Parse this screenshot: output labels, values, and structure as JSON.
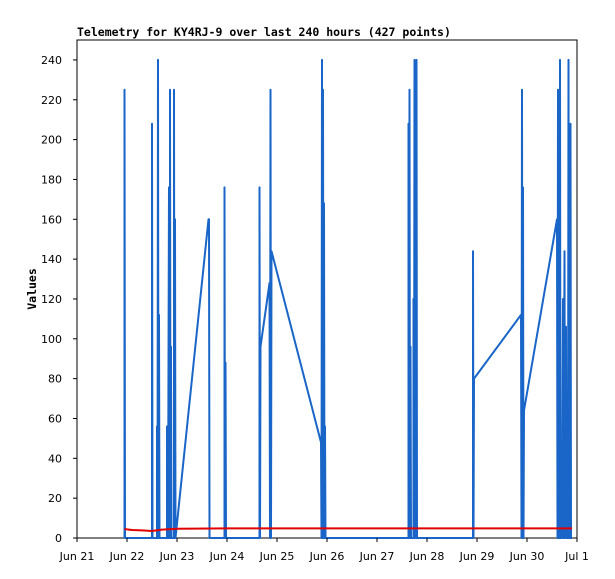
{
  "chart_data": {
    "type": "line",
    "title": "Telemetry for KY4RJ-9 over last 240 hours (427 points)",
    "xlabel": "",
    "ylabel": "Values",
    "ylim": [
      0,
      250
    ],
    "yticks": [
      0,
      20,
      40,
      60,
      80,
      100,
      120,
      140,
      160,
      180,
      200,
      220,
      240
    ],
    "x_tick_labels": [
      "Jun 21",
      "Jun 22",
      "Jun 23",
      "Jun 24",
      "Jun 25",
      "Jun 26",
      "Jun 27",
      "Jun 28",
      "Jun 29",
      "Jun 30",
      "Jul 1"
    ],
    "grid": false,
    "series": [
      {
        "color": "#1a66c8",
        "points": [
          [
            21.95,
            0
          ],
          [
            21.95,
            225
          ],
          [
            21.96,
            0
          ],
          [
            22.5,
            0
          ],
          [
            22.5,
            208
          ],
          [
            22.51,
            0
          ],
          [
            22.6,
            0
          ],
          [
            22.6,
            56
          ],
          [
            22.61,
            0
          ],
          [
            22.62,
            240
          ],
          [
            22.63,
            0
          ],
          [
            22.64,
            112
          ],
          [
            22.65,
            0
          ],
          [
            22.8,
            0
          ],
          [
            22.8,
            56
          ],
          [
            22.82,
            0
          ],
          [
            22.84,
            176
          ],
          [
            22.85,
            0
          ],
          [
            22.86,
            0
          ],
          [
            22.86,
            225
          ],
          [
            22.87,
            0
          ],
          [
            22.88,
            96
          ],
          [
            22.89,
            0
          ],
          [
            22.94,
            0
          ],
          [
            22.94,
            225
          ],
          [
            22.95,
            0
          ],
          [
            22.96,
            160
          ],
          [
            22.97,
            0
          ],
          [
            23.63,
            160
          ],
          [
            23.64,
            160
          ],
          [
            23.65,
            0
          ],
          [
            23.95,
            0
          ],
          [
            23.95,
            176
          ],
          [
            23.96,
            0
          ],
          [
            23.97,
            88
          ],
          [
            23.98,
            0
          ],
          [
            24.65,
            0
          ],
          [
            24.65,
            176
          ],
          [
            24.66,
            0
          ],
          [
            24.67,
            96
          ],
          [
            24.85,
            128
          ],
          [
            24.86,
            0
          ],
          [
            24.87,
            225
          ],
          [
            24.88,
            0
          ],
          [
            24.89,
            144
          ],
          [
            25.88,
            48
          ],
          [
            25.89,
            0
          ],
          [
            25.9,
            240
          ],
          [
            25.91,
            0
          ],
          [
            25.92,
            225
          ],
          [
            25.93,
            0
          ],
          [
            25.94,
            168
          ],
          [
            25.95,
            0
          ],
          [
            25.96,
            56
          ],
          [
            25.97,
            0
          ],
          [
            27.63,
            0
          ],
          [
            27.63,
            208
          ],
          [
            27.64,
            0
          ],
          [
            27.65,
            225
          ],
          [
            27.66,
            0
          ],
          [
            27.67,
            96
          ],
          [
            27.68,
            0
          ],
          [
            27.73,
            0
          ],
          [
            27.73,
            120
          ],
          [
            27.74,
            0
          ],
          [
            27.75,
            240
          ],
          [
            27.76,
            0
          ],
          [
            27.77,
            198
          ],
          [
            27.78,
            0
          ],
          [
            27.79,
            240
          ],
          [
            27.8,
            0
          ],
          [
            28.92,
            0
          ],
          [
            28.92,
            144
          ],
          [
            28.93,
            0
          ],
          [
            28.94,
            80
          ],
          [
            29.88,
            112
          ],
          [
            29.89,
            0
          ],
          [
            29.9,
            225
          ],
          [
            29.91,
            0
          ],
          [
            29.92,
            176
          ],
          [
            29.93,
            0
          ],
          [
            29.94,
            64
          ],
          [
            30.6,
            160
          ],
          [
            30.61,
            0
          ],
          [
            30.62,
            225
          ],
          [
            30.63,
            0
          ],
          [
            30.64,
            216
          ],
          [
            30.65,
            0
          ],
          [
            30.66,
            240
          ],
          [
            30.67,
            0
          ],
          [
            30.7,
            0
          ],
          [
            30.72,
            120
          ],
          [
            30.73,
            0
          ],
          [
            30.75,
            144
          ],
          [
            30.76,
            0
          ],
          [
            30.78,
            106
          ],
          [
            30.79,
            0
          ],
          [
            30.82,
            0
          ],
          [
            30.83,
            240
          ],
          [
            30.84,
            0
          ],
          [
            30.85,
            56
          ],
          [
            30.86,
            0
          ],
          [
            30.87,
            208
          ],
          [
            30.88,
            0
          ],
          [
            30.9,
            0
          ]
        ]
      },
      {
        "color": "#e00000",
        "points": [
          [
            21.95,
            4.5
          ],
          [
            22.1,
            4
          ],
          [
            22.3,
            3.8
          ],
          [
            22.5,
            3.5
          ],
          [
            22.7,
            4.2
          ],
          [
            23.0,
            4.6
          ],
          [
            24.0,
            4.8
          ],
          [
            26.0,
            4.8
          ],
          [
            28.0,
            4.8
          ],
          [
            30.0,
            4.8
          ],
          [
            30.9,
            4.8
          ]
        ]
      }
    ]
  }
}
